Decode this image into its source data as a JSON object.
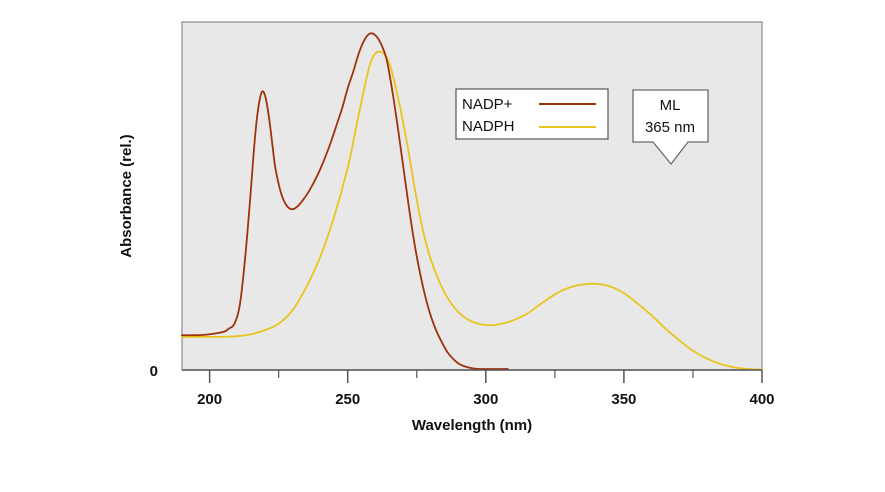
{
  "chart_data": {
    "type": "line",
    "xlabel": "Wavelength (nm)",
    "ylabel": "Absorbance (rel.)",
    "xlim": [
      190,
      400
    ],
    "ylim": [
      0,
      1.05
    ],
    "x_ticks_major": [
      200,
      250,
      300,
      350,
      400
    ],
    "x_ticks_minor": [
      225,
      275,
      325,
      375
    ],
    "y_tick_labels": [
      {
        "value": 0,
        "label": "0"
      }
    ],
    "grid": false,
    "legend_position": "top-right",
    "plot_background": "#e8e8e8",
    "series": [
      {
        "name": "NADP+",
        "color": "#a0320a",
        "x": [
          190,
          195,
          200,
          205,
          207,
          209,
          211,
          213,
          215,
          216,
          217,
          218,
          219,
          220,
          221,
          222,
          223,
          224,
          226,
          228,
          230,
          232,
          234,
          236,
          238,
          240,
          242,
          244,
          246,
          248,
          250,
          252,
          254,
          256,
          258,
          260,
          262,
          264,
          266,
          268,
          270,
          272,
          274,
          276,
          278,
          280,
          282,
          284,
          286,
          288,
          290,
          292,
          294,
          296,
          298,
          300,
          302,
          304,
          308
        ],
        "y": [
          0.105,
          0.105,
          0.108,
          0.115,
          0.125,
          0.14,
          0.2,
          0.35,
          0.55,
          0.66,
          0.75,
          0.81,
          0.84,
          0.83,
          0.79,
          0.73,
          0.66,
          0.6,
          0.53,
          0.495,
          0.485,
          0.495,
          0.515,
          0.54,
          0.57,
          0.605,
          0.645,
          0.69,
          0.74,
          0.79,
          0.85,
          0.9,
          0.955,
          0.995,
          1.015,
          1.01,
          0.985,
          0.94,
          0.85,
          0.74,
          0.62,
          0.5,
          0.39,
          0.3,
          0.225,
          0.165,
          0.12,
          0.085,
          0.055,
          0.035,
          0.02,
          0.012,
          0.007,
          0.004,
          0.003,
          0.003,
          0.003,
          0.003,
          0.003
        ]
      },
      {
        "name": "NADPH",
        "color": "#e8c51e",
        "x": [
          190,
          195,
          200,
          205,
          210,
          215,
          220,
          225,
          230,
          235,
          240,
          245,
          250,
          253,
          256,
          258,
          260,
          262,
          264,
          266,
          268,
          270,
          272,
          274,
          276,
          278,
          280,
          283,
          286,
          290,
          294,
          298,
          302,
          306,
          310,
          315,
          320,
          325,
          330,
          335,
          340,
          345,
          350,
          355,
          360,
          365,
          370,
          375,
          380,
          385,
          390,
          395,
          400
        ],
        "y": [
          0.1,
          0.1,
          0.1,
          0.1,
          0.102,
          0.108,
          0.12,
          0.14,
          0.18,
          0.25,
          0.34,
          0.46,
          0.61,
          0.73,
          0.85,
          0.92,
          0.955,
          0.96,
          0.945,
          0.9,
          0.83,
          0.75,
          0.66,
          0.56,
          0.47,
          0.395,
          0.335,
          0.27,
          0.22,
          0.175,
          0.15,
          0.138,
          0.135,
          0.14,
          0.15,
          0.17,
          0.2,
          0.228,
          0.248,
          0.258,
          0.26,
          0.252,
          0.232,
          0.2,
          0.165,
          0.125,
          0.09,
          0.058,
          0.035,
          0.018,
          0.008,
          0.003,
          0.001
        ]
      }
    ],
    "annotations": [
      {
        "kind": "callout-arrow",
        "lines": [
          "ML",
          "365 nm"
        ],
        "points_at_x": 365
      }
    ]
  }
}
